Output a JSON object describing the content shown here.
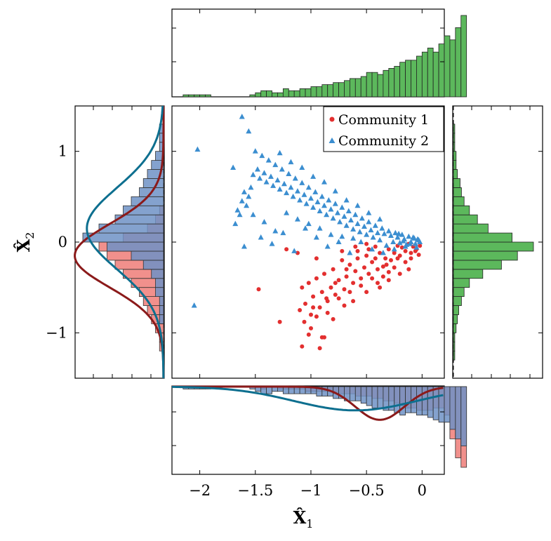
{
  "chart_data": {
    "type": "scatter",
    "title": "",
    "xlabel": {
      "main": "X̂",
      "sub": "1"
    },
    "ylabel": {
      "main": "X̂",
      "sub": "2"
    },
    "xlim": [
      -2.25,
      0.2
    ],
    "ylim": [
      -1.5,
      1.5
    ],
    "xticks": [
      -2,
      -1.5,
      -1,
      -0.5,
      0
    ],
    "xtick_labels": [
      "−2",
      "−1.5",
      "−1",
      "−0.5",
      "0"
    ],
    "yticks": [
      -1,
      0,
      1
    ],
    "ytick_labels": [
      "−1",
      "0",
      "1"
    ],
    "grid": false,
    "legend_position": "top-right",
    "colors": {
      "community1": "#e32f2f",
      "community2": "#3b8ed0",
      "marginal_total": "#5cb85c",
      "hist_red": "#ee7d78",
      "hist_blue": "#6f92c5",
      "kde_red": "#8b1a1a",
      "kde_blue": "#0d6f8f"
    },
    "series": [
      {
        "name": "Community 1",
        "marker": "circle",
        "points": [
          [
            -0.02,
            -0.04
          ],
          [
            -0.05,
            -0.08
          ],
          [
            -0.08,
            -0.05
          ],
          [
            -0.1,
            -0.12
          ],
          [
            -0.12,
            -0.02
          ],
          [
            -0.15,
            -0.1
          ],
          [
            -0.18,
            -0.06
          ],
          [
            -0.2,
            -0.15
          ],
          [
            -0.22,
            -0.04
          ],
          [
            -0.25,
            -0.12
          ],
          [
            -0.28,
            -0.2
          ],
          [
            -0.3,
            -0.08
          ],
          [
            -0.33,
            -0.18
          ],
          [
            -0.35,
            -0.27
          ],
          [
            -0.38,
            -0.12
          ],
          [
            -0.4,
            -0.3
          ],
          [
            -0.42,
            -0.05
          ],
          [
            -0.45,
            -0.22
          ],
          [
            -0.48,
            -0.35
          ],
          [
            -0.5,
            -0.15
          ],
          [
            -0.52,
            -0.28
          ],
          [
            -0.55,
            -0.4
          ],
          [
            -0.58,
            -0.18
          ],
          [
            -0.6,
            -0.32
          ],
          [
            -0.62,
            -0.45
          ],
          [
            -0.65,
            -0.25
          ],
          [
            -0.68,
            -0.38
          ],
          [
            -0.7,
            -0.52
          ],
          [
            -0.72,
            -0.2
          ],
          [
            -0.75,
            -0.42
          ],
          [
            -0.78,
            -0.58
          ],
          [
            -0.8,
            -0.3
          ],
          [
            -0.82,
            -0.5
          ],
          [
            -0.85,
            -0.65
          ],
          [
            -0.88,
            -0.35
          ],
          [
            -0.9,
            -0.55
          ],
          [
            -0.92,
            -0.72
          ],
          [
            -0.95,
            -0.4
          ],
          [
            -0.98,
            -0.6
          ],
          [
            -1.0,
            -0.8
          ],
          [
            -1.02,
            -0.45
          ],
          [
            -1.05,
            -0.68
          ],
          [
            -1.08,
            -0.5
          ],
          [
            -1.1,
            -0.75
          ],
          [
            -0.85,
            -0.78
          ],
          [
            -0.95,
            -0.82
          ],
          [
            -1.0,
            -0.95
          ],
          [
            -0.9,
            -1.05
          ],
          [
            -1.08,
            -1.15
          ],
          [
            -0.92,
            -1.17
          ],
          [
            -0.88,
            -1.05
          ],
          [
            -1.02,
            -1.02
          ],
          [
            -1.28,
            -0.88
          ],
          [
            -1.47,
            -0.52
          ],
          [
            -1.22,
            -0.08
          ],
          [
            -1.12,
            -0.12
          ],
          [
            -0.95,
            -0.18
          ],
          [
            -0.72,
            -0.1
          ],
          [
            -0.6,
            -0.05
          ],
          [
            -0.5,
            -0.02
          ],
          [
            -0.45,
            -0.4
          ],
          [
            -0.55,
            -0.48
          ],
          [
            -0.65,
            -0.55
          ],
          [
            -0.75,
            -0.62
          ],
          [
            -0.62,
            -0.65
          ],
          [
            -0.5,
            -0.55
          ],
          [
            -0.4,
            -0.45
          ],
          [
            -0.35,
            -0.38
          ],
          [
            -0.3,
            -0.33
          ],
          [
            -0.25,
            -0.28
          ],
          [
            -0.15,
            -0.22
          ],
          [
            -0.1,
            -0.18
          ],
          [
            -0.06,
            -0.1
          ],
          [
            -0.03,
            -0.14
          ],
          [
            -0.12,
            -0.3
          ],
          [
            -0.2,
            -0.35
          ],
          [
            -0.3,
            -0.42
          ],
          [
            -0.38,
            -0.5
          ],
          [
            -0.7,
            -0.7
          ],
          [
            -0.8,
            -0.85
          ],
          [
            -1.06,
            -0.88
          ],
          [
            -0.98,
            -0.72
          ],
          [
            -0.86,
            -0.62
          ],
          [
            -0.78,
            -0.45
          ],
          [
            -0.68,
            -0.3
          ],
          [
            -0.58,
            -0.1
          ],
          [
            -0.48,
            -0.08
          ],
          [
            -0.42,
            -0.18
          ],
          [
            -0.32,
            -0.25
          ],
          [
            -0.22,
            -0.18
          ]
        ]
      },
      {
        "name": "Community 2",
        "marker": "triangle",
        "points": [
          [
            -0.02,
            0.0
          ],
          [
            -0.04,
            0.03
          ],
          [
            -0.06,
            -0.02
          ],
          [
            -0.08,
            0.05
          ],
          [
            -0.1,
            0.0
          ],
          [
            -0.12,
            0.06
          ],
          [
            -0.14,
            -0.03
          ],
          [
            -0.16,
            0.03
          ],
          [
            -0.18,
            0.08
          ],
          [
            -0.2,
            -0.01
          ],
          [
            -0.22,
            0.05
          ],
          [
            -0.24,
            0.1
          ],
          [
            -0.26,
            0.0
          ],
          [
            -0.28,
            0.07
          ],
          [
            -0.3,
            0.12
          ],
          [
            -0.32,
            -0.04
          ],
          [
            -0.34,
            0.09
          ],
          [
            -0.36,
            0.15
          ],
          [
            -0.38,
            0.02
          ],
          [
            -0.4,
            0.1
          ],
          [
            -0.42,
            0.18
          ],
          [
            -0.44,
            0.05
          ],
          [
            -0.46,
            0.13
          ],
          [
            -0.48,
            0.22
          ],
          [
            -0.5,
            0.08
          ],
          [
            -0.52,
            0.17
          ],
          [
            -0.54,
            0.26
          ],
          [
            -0.56,
            0.11
          ],
          [
            -0.58,
            0.2
          ],
          [
            -0.6,
            0.3
          ],
          [
            -0.62,
            0.14
          ],
          [
            -0.64,
            0.24
          ],
          [
            -0.66,
            0.34
          ],
          [
            -0.68,
            0.18
          ],
          [
            -0.7,
            0.28
          ],
          [
            -0.72,
            0.38
          ],
          [
            -0.74,
            0.22
          ],
          [
            -0.76,
            0.32
          ],
          [
            -0.78,
            0.42
          ],
          [
            -0.8,
            0.26
          ],
          [
            -0.82,
            0.36
          ],
          [
            -0.84,
            0.46
          ],
          [
            -0.86,
            0.3
          ],
          [
            -0.88,
            0.4
          ],
          [
            -0.9,
            0.5
          ],
          [
            -0.92,
            0.34
          ],
          [
            -0.94,
            0.44
          ],
          [
            -0.96,
            0.55
          ],
          [
            -0.98,
            0.38
          ],
          [
            -1.0,
            0.48
          ],
          [
            -1.02,
            0.6
          ],
          [
            -1.04,
            0.42
          ],
          [
            -1.06,
            0.52
          ],
          [
            -1.08,
            0.65
          ],
          [
            -1.1,
            0.46
          ],
          [
            -1.12,
            0.56
          ],
          [
            -1.14,
            0.7
          ],
          [
            -1.16,
            0.5
          ],
          [
            -1.18,
            0.6
          ],
          [
            -1.2,
            0.75
          ],
          [
            -1.22,
            0.54
          ],
          [
            -1.24,
            0.64
          ],
          [
            -1.26,
            0.8
          ],
          [
            -1.28,
            0.58
          ],
          [
            -1.3,
            0.68
          ],
          [
            -1.32,
            0.85
          ],
          [
            -1.34,
            0.62
          ],
          [
            -1.36,
            0.72
          ],
          [
            -1.38,
            0.9
          ],
          [
            -1.4,
            0.66
          ],
          [
            -1.42,
            0.76
          ],
          [
            -1.44,
            0.95
          ],
          [
            -1.46,
            0.7
          ],
          [
            -1.48,
            0.8
          ],
          [
            -1.5,
            1.0
          ],
          [
            -1.52,
            0.74
          ],
          [
            -1.54,
            0.6
          ],
          [
            -1.56,
            0.5
          ],
          [
            -1.58,
            0.4
          ],
          [
            -1.6,
            0.55
          ],
          [
            -1.62,
            0.45
          ],
          [
            -1.64,
            0.3
          ],
          [
            -1.66,
            0.35
          ],
          [
            -1.68,
            0.2
          ],
          [
            -1.7,
            0.82
          ],
          [
            -1.56,
            1.22
          ],
          [
            -1.62,
            1.38
          ],
          [
            -2.02,
            1.02
          ],
          [
            -2.05,
            -0.7
          ],
          [
            -1.6,
            -0.05
          ],
          [
            -1.45,
            0.05
          ],
          [
            -1.35,
            -0.02
          ],
          [
            -1.25,
            0.1
          ],
          [
            -1.15,
            -0.1
          ],
          [
            -1.05,
            0.15
          ],
          [
            -0.95,
            0.05
          ],
          [
            -0.85,
            -0.05
          ],
          [
            -0.75,
            0.0
          ],
          [
            -0.65,
            -0.12
          ],
          [
            -0.55,
            0.0
          ],
          [
            -0.45,
            -0.08
          ],
          [
            -0.35,
            -0.12
          ],
          [
            -0.25,
            -0.08
          ],
          [
            -0.15,
            -0.05
          ],
          [
            -0.05,
            -0.06
          ],
          [
            -0.03,
            0.02
          ],
          [
            -0.07,
            0.04
          ],
          [
            -0.11,
            -0.02
          ],
          [
            -0.17,
            0.01
          ],
          [
            -0.21,
            0.09
          ],
          [
            -1.52,
            0.3
          ],
          [
            -1.42,
            0.22
          ],
          [
            -1.32,
            0.12
          ],
          [
            -1.22,
            0.32
          ],
          [
            -1.12,
            0.25
          ],
          [
            -1.02,
            0.2
          ],
          [
            -0.92,
            0.15
          ],
          [
            -0.82,
            0.08
          ],
          [
            -0.72,
            0.06
          ],
          [
            -0.62,
            0.04
          ],
          [
            -1.28,
            0.98
          ],
          [
            -1.18,
            0.88
          ],
          [
            -1.08,
            0.82
          ],
          [
            -0.98,
            0.72
          ],
          [
            -0.88,
            0.66
          ],
          [
            -0.78,
            0.56
          ],
          [
            -0.68,
            0.46
          ],
          [
            -0.58,
            0.4
          ],
          [
            -0.48,
            0.32
          ],
          [
            -0.38,
            0.25
          ]
        ]
      }
    ],
    "marginal_top": {
      "type": "histogram",
      "series": "all",
      "bin_start": -2.25,
      "bin_width": 0.05,
      "counts": [
        0,
        0,
        1,
        1,
        1,
        1,
        1,
        0,
        0,
        0,
        0,
        0,
        0,
        0,
        1,
        2,
        3,
        3,
        2,
        2,
        4,
        3,
        3,
        4,
        4,
        5,
        5,
        6,
        6,
        7,
        7,
        8,
        9,
        9,
        10,
        12,
        12,
        11,
        13,
        14,
        15,
        17,
        18,
        18,
        20,
        22,
        24,
        22,
        26,
        30,
        28,
        34,
        40
      ]
    },
    "marginal_right": {
      "type": "histogram",
      "series": "all",
      "bin_start": -1.5,
      "bin_width": 0.1,
      "counts": [
        0,
        0,
        1,
        1,
        1,
        2,
        3,
        4,
        6,
        8,
        12,
        22,
        36,
        48,
        60,
        44,
        26,
        18,
        12,
        8,
        6,
        5,
        3,
        2,
        2,
        1,
        1,
        1,
        0,
        0
      ]
    },
    "marginal_left": {
      "type": "histogram_by_community",
      "bin_start": -1.5,
      "bin_width": 0.1,
      "community1": [
        0,
        0,
        0,
        1,
        1,
        2,
        3,
        4,
        5,
        6,
        8,
        10,
        12,
        14,
        16,
        10,
        4,
        2,
        1,
        0,
        0,
        0,
        0,
        0,
        0,
        0,
        0,
        0,
        0,
        0
      ],
      "community2": [
        0,
        0,
        0,
        0,
        0,
        0,
        1,
        1,
        1,
        2,
        2,
        3,
        5,
        8,
        14,
        20,
        16,
        12,
        10,
        8,
        6,
        5,
        4,
        3,
        2,
        1,
        1,
        1,
        0,
        0
      ],
      "kde_community1": {
        "mean": -0.15,
        "sd": 0.35,
        "peak": 22
      },
      "kde_community2": {
        "mean": 0.15,
        "sd": 0.45,
        "peak": 19
      }
    },
    "marginal_bottom": {
      "type": "histogram_by_community",
      "bin_start": -2.25,
      "bin_width": 0.05,
      "community1": [
        0,
        0,
        0,
        0,
        0,
        0,
        0,
        0,
        0,
        0,
        0,
        0,
        0,
        0,
        0,
        0,
        1,
        0,
        0,
        1,
        1,
        1,
        1,
        1,
        2,
        2,
        2,
        2,
        2,
        3,
        3,
        3,
        3,
        4,
        4,
        4,
        5,
        5,
        6,
        6,
        7,
        8,
        9,
        9,
        10,
        10,
        10,
        9,
        9,
        12,
        22,
        30,
        34
      ],
      "community2": [
        0,
        0,
        1,
        1,
        1,
        1,
        1,
        0,
        0,
        0,
        0,
        0,
        0,
        0,
        1,
        2,
        3,
        3,
        2,
        2,
        3,
        3,
        3,
        3,
        3,
        3,
        4,
        4,
        4,
        5,
        5,
        6,
        6,
        6,
        7,
        8,
        9,
        9,
        10,
        10,
        11,
        12,
        11,
        11,
        12,
        12,
        13,
        14,
        15,
        15,
        18,
        22,
        25
      ],
      "kde_community1": {
        "mean": -0.38,
        "sd": 0.22,
        "peak": 14
      },
      "kde_community2": {
        "mean": -0.6,
        "sd": 0.55,
        "peak": 10
      }
    }
  }
}
